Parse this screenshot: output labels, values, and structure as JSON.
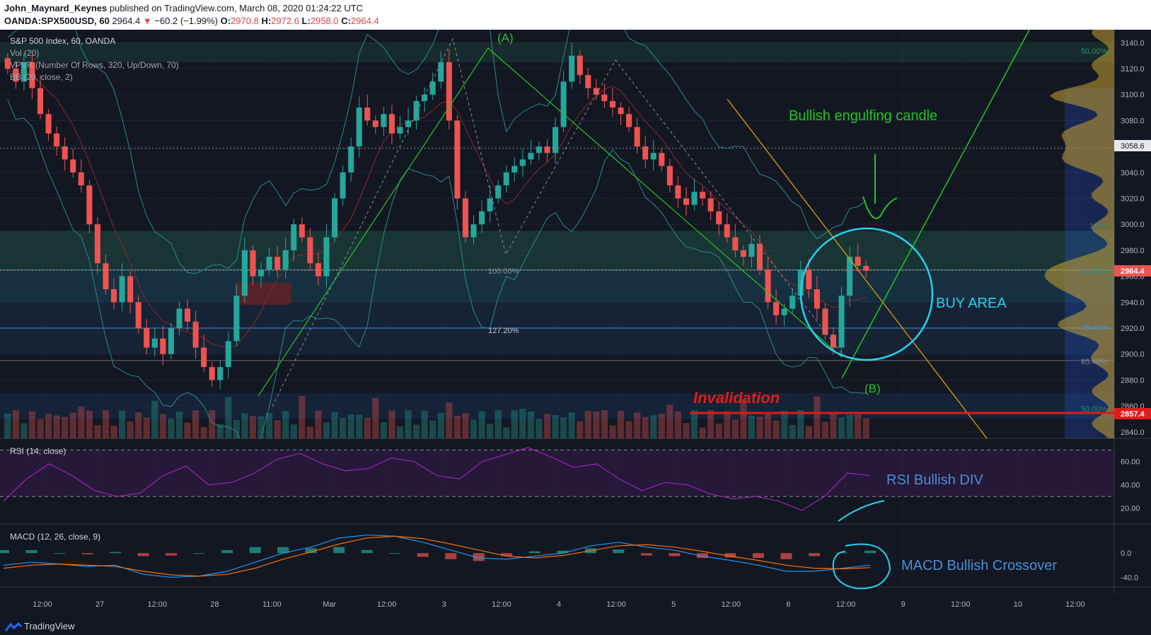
{
  "header": {
    "author": "John_Maynard_Keynes",
    "published": "published on TradingView.com, March 08, 2020 01:24:22 UTC",
    "symbol": "OANDA:SPX500USD, 60",
    "last": "2964.4",
    "change": "−60.2 (−1.99%)",
    "o_label": "O:",
    "o": "2970.8",
    "h_label": "H:",
    "h": "2972.6",
    "l_label": "L:",
    "l": "2958.0",
    "c_label": "C:",
    "c": "2964.4"
  },
  "legend": {
    "title": "S&P 500 Index, 60, OANDA",
    "vol": "Vol (20)",
    "vpvr": "VPVR (Number Of Rows, 320, Up/Down, 70)",
    "bb": "BB (20, close, 2)"
  },
  "annotations": {
    "a": "(A)",
    "b": "(B)",
    "engulf": "Bullish engulfing candle",
    "buy": "BUY AREA",
    "invalid": "Invalidation",
    "rsi_div": "RSI Bullish DIV",
    "macd_cross": "MACD Bullish Crossover"
  },
  "fib_labels": {
    "f100": "100.00%",
    "f127": "127.20%",
    "f50a": "50.00%",
    "f618": "61.80%",
    "f764": "76.40%",
    "f854": "85.40%",
    "f50b": "50.00%",
    "f1": "1.0%"
  },
  "price_badges": {
    "p1": "3058.6",
    "p2": "2964.4",
    "p3": "2857.4"
  },
  "rsi": {
    "label": "RSI (14, close)"
  },
  "macd": {
    "label": "MACD (12, 26, close, 9)"
  },
  "footer": {
    "brand": "TradingView"
  },
  "colors": {
    "bg": "#131722",
    "up": "#26a69a",
    "down": "#ef5350",
    "fib": "#2d8a8a",
    "buy_circle": "#22d3ee",
    "invalid": "#e31b1b",
    "trend_green": "#22c722",
    "trend_orange": "#f0a500",
    "rsi": "#9c27b0"
  },
  "chart_data": [
    {
      "type": "candlestick",
      "title": "S&P 500 Index, 60, OANDA",
      "ylim": [
        2835,
        3150
      ],
      "y_ticks": [
        3140,
        3120,
        3100,
        3080,
        3060,
        3040,
        3020,
        3000,
        2980,
        2960,
        2940,
        2920,
        2900,
        2880,
        2860,
        2840
      ],
      "x_ticks": [
        "12:00",
        "27",
        "12:00",
        "28",
        "11:00",
        "Mar",
        "12:00",
        "3",
        "12:00",
        "4",
        "12:00",
        "5",
        "12:00",
        "6",
        "12:00",
        "9",
        "12:00",
        "10",
        "12:00"
      ],
      "close": [
        3120,
        3110,
        3125,
        3105,
        3085,
        3070,
        3060,
        3050,
        3040,
        3030,
        3000,
        2970,
        2950,
        2940,
        2960,
        2940,
        2920,
        2905,
        2912,
        2900,
        2920,
        2935,
        2925,
        2905,
        2890,
        2880,
        2890,
        2910,
        2945,
        2980,
        2960,
        2965,
        2975,
        2965,
        2980,
        3000,
        2990,
        2970,
        2960,
        2990,
        3020,
        3040,
        3060,
        3090,
        3080,
        3075,
        3085,
        3070,
        3075,
        3080,
        3095,
        3100,
        3110,
        3125,
        3080,
        3020,
        2990,
        3000,
        3010,
        3020,
        3030,
        3040,
        3045,
        3050,
        3055,
        3060,
        3055,
        3075,
        3110,
        3130,
        3115,
        3105,
        3100,
        3095,
        3090,
        3085,
        3075,
        3060,
        3050,
        3055,
        3045,
        3030,
        3020,
        3015,
        3025,
        3020,
        3010,
        3000,
        2990,
        2980,
        2975,
        2985,
        2965,
        2940,
        2930,
        2935,
        2945,
        2965,
        2950,
        2935,
        2915,
        2905,
        2945,
        2975,
        2968,
        2964.4
      ],
      "volume_note": "volume histogram at the bottom of the price pane",
      "levels": {
        "resistance": 3058.6,
        "last": 2964.4,
        "invalidation": 2857.4
      },
      "fib_levels": [
        "100.00%",
        "127.20%",
        "50.00%",
        "61.80%",
        "76.40%",
        "85.40%"
      ]
    },
    {
      "type": "line",
      "title": "RSI (14, close)",
      "ylim": [
        10,
        75
      ],
      "y_ticks": [
        60,
        40,
        20
      ],
      "bands": [
        70,
        30
      ],
      "values": [
        26,
        45,
        58,
        48,
        35,
        30,
        33,
        48,
        56,
        40,
        42,
        50,
        62,
        67,
        58,
        52,
        54,
        63,
        60,
        48,
        45,
        60,
        66,
        72,
        64,
        55,
        58,
        45,
        35,
        42,
        40,
        32,
        28,
        30,
        26,
        18,
        30,
        50,
        48
      ]
    },
    {
      "type": "line",
      "title": "MACD (12, 26, close, 9)",
      "ylim": [
        -50,
        40
      ],
      "y_ticks": [
        0.0,
        -40.0
      ],
      "series": [
        {
          "name": "MACD",
          "values": [
            -20,
            -15,
            -18,
            -22,
            -20,
            -35,
            -40,
            -38,
            -30,
            -15,
            0,
            10,
            25,
            30,
            28,
            18,
            5,
            -8,
            -10,
            -5,
            0,
            12,
            18,
            10,
            5,
            -5,
            -12,
            -20,
            -30,
            -30,
            -25,
            -20
          ]
        },
        {
          "name": "Signal",
          "values": [
            -25,
            -20,
            -18,
            -20,
            -22,
            -30,
            -36,
            -38,
            -35,
            -25,
            -10,
            2,
            15,
            25,
            28,
            24,
            15,
            5,
            -5,
            -8,
            -4,
            4,
            12,
            14,
            10,
            3,
            -5,
            -12,
            -20,
            -25,
            -26,
            -24
          ]
        }
      ]
    }
  ]
}
